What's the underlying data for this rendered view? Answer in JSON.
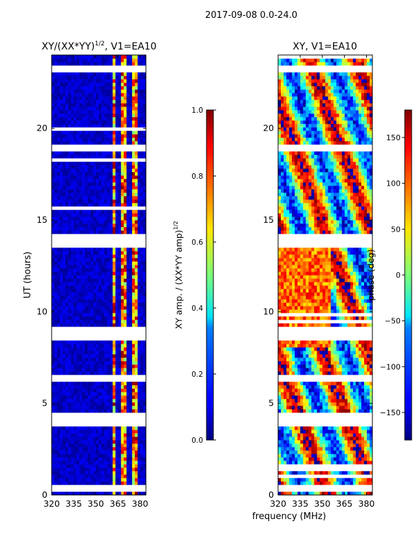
{
  "figure": {
    "suptitle": "2017-09-08 0.0-24.0",
    "shared_xlabel": "frequency (MHz)"
  },
  "chart_data": [
    {
      "type": "heatmap",
      "name": "amplitude",
      "title": "XY/(XX*YY)",
      "title_exp": "1/2",
      "title_tail": ", V1=EA10",
      "xlabel": "frequency (MHz)",
      "ylabel": "UT (hours)",
      "xlim": [
        320,
        384
      ],
      "ylim": [
        0,
        24
      ],
      "xticks": [
        320,
        335,
        350,
        365,
        380
      ],
      "yticks": [
        0,
        5,
        10,
        15,
        20
      ],
      "colorbar": {
        "label": "XY amp. / (XX*YY amp)",
        "label_exp": "1/2",
        "range": [
          0.0,
          1.0
        ],
        "ticks": [
          "0.0",
          "0.2",
          "0.4",
          "0.6",
          "0.8",
          "1.0"
        ],
        "colormap": "jet"
      },
      "bright_bands_mhz": [
        [
          361,
          364
        ],
        [
          364.5,
          366
        ],
        [
          368,
          369
        ],
        [
          369.5,
          371
        ],
        [
          372,
          373
        ],
        [
          374.5,
          376
        ],
        [
          377,
          378
        ]
      ],
      "gaps_hours": [
        [
          0.35,
          0.55
        ],
        [
          3.9,
          4.1
        ],
        [
          4.25,
          4.45
        ],
        [
          6.2,
          6.45
        ],
        [
          8.6,
          8.8
        ],
        [
          8.85,
          9.15
        ],
        [
          13.5,
          13.8
        ],
        [
          13.95,
          14.15
        ],
        [
          18.75,
          19.1
        ],
        [
          23.2,
          23.3
        ]
      ]
    },
    {
      "type": "heatmap",
      "name": "phase",
      "title": "XY, V1=EA10",
      "xlabel": "frequency (MHz)",
      "ylabel": "",
      "xlim": [
        320,
        384
      ],
      "ylim": [
        0,
        24
      ],
      "xticks": [
        320,
        335,
        350,
        365,
        380
      ],
      "yticks": [
        0,
        5,
        10,
        15,
        20
      ],
      "colorbar": {
        "label": "phase (deg)",
        "range": [
          -180,
          180
        ],
        "ticks": [
          "150",
          "100",
          "50",
          "0",
          "−50",
          "−100",
          "−150"
        ],
        "tick_values": [
          150,
          100,
          50,
          0,
          -50,
          -100,
          -150
        ],
        "colormap": "jet"
      },
      "gaps_hours": [
        [
          0.35,
          0.55
        ],
        [
          3.9,
          4.1
        ],
        [
          4.25,
          4.45
        ],
        [
          6.2,
          6.45
        ],
        [
          8.6,
          8.8
        ],
        [
          8.85,
          9.15
        ],
        [
          13.5,
          13.8
        ],
        [
          13.95,
          14.15
        ],
        [
          18.75,
          19.1
        ],
        [
          23.2,
          23.3
        ]
      ]
    }
  ]
}
